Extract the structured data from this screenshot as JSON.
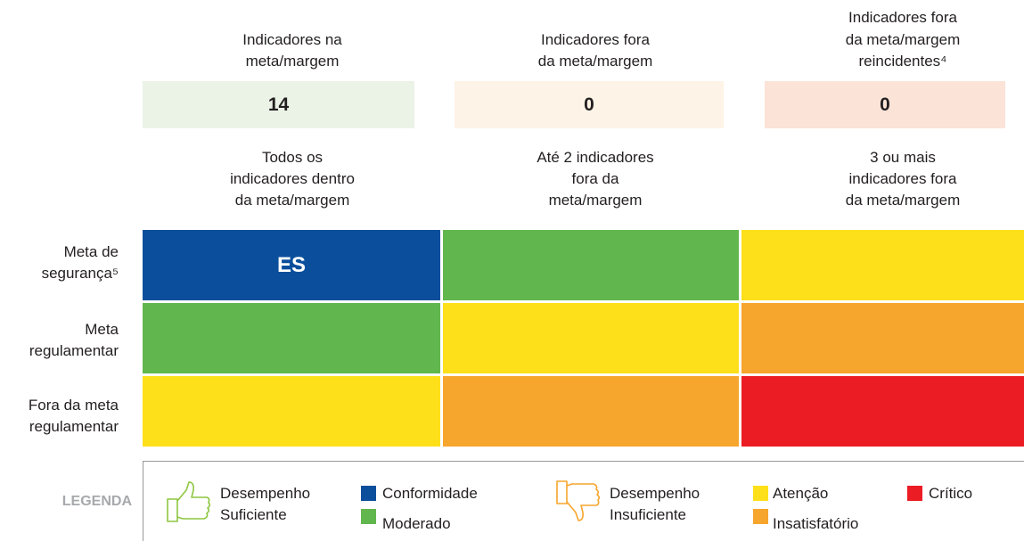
{
  "headers": [
    {
      "title": [
        "Indicadores na",
        "meta/margem"
      ],
      "value": "14",
      "description": [
        "Todos os",
        "indicadores dentro",
        "da meta/margem"
      ]
    },
    {
      "title": [
        "Indicadores fora",
        "da meta/margem"
      ],
      "value": "0",
      "description": [
        "Até 2 indicadores",
        "fora da",
        "meta/margem"
      ]
    },
    {
      "title": [
        "Indicadores fora",
        "da meta/margem",
        "reincidentes⁴"
      ],
      "value": "0",
      "description": [
        "3 ou mais",
        "indicadores fora",
        "da meta/margem"
      ]
    }
  ],
  "rows": [
    {
      "label": [
        "Meta de",
        "segurança⁵"
      ],
      "cell_text": "ES"
    },
    {
      "label": [
        "Meta",
        "regulamentar"
      ]
    },
    {
      "label": [
        "Fora da meta",
        "regulamentar"
      ]
    }
  ],
  "legend": {
    "title": "LEGENDA",
    "sufficient": [
      "Desempenho",
      "Suficiente"
    ],
    "insufficient": [
      "Desempenho",
      "Insuficiente"
    ],
    "items": [
      "Conformidade",
      "Moderado",
      "Atenção",
      "Insatisfatório",
      "Crítico"
    ]
  }
}
